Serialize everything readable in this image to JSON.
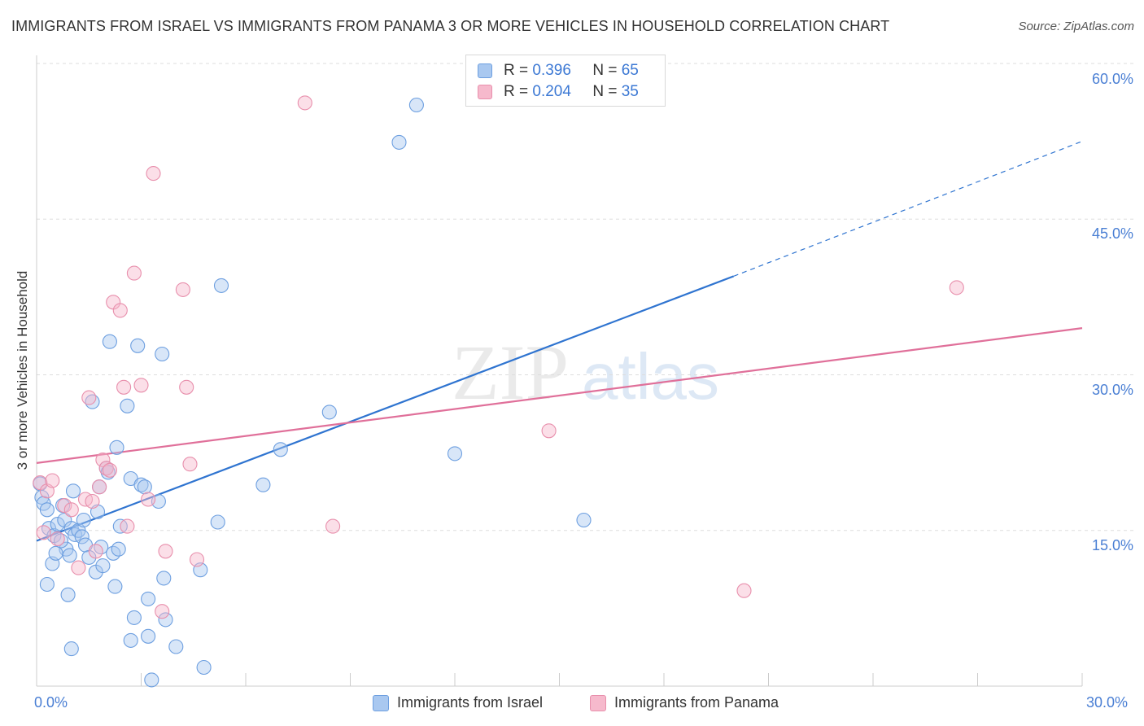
{
  "header": {
    "title": "IMMIGRANTS FROM ISRAEL VS IMMIGRANTS FROM PANAMA 3 OR MORE VEHICLES IN HOUSEHOLD CORRELATION CHART",
    "source": "Source: ZipAtlas.com"
  },
  "watermark": {
    "part1": "ZIP",
    "part2": "atlas"
  },
  "colors": {
    "israel_fill": "#a9c8f0",
    "israel_stroke": "#6d9fe0",
    "israel_line": "#2f74d0",
    "panama_fill": "#f6b9cc",
    "panama_stroke": "#e88fac",
    "panama_line": "#e0709a",
    "tick_text": "#4a7fd4"
  },
  "legend_top": {
    "rows": [
      {
        "r_label": "R =",
        "r_value": "0.396",
        "n_label": "N =",
        "n_value": "65"
      },
      {
        "r_label": "R =",
        "r_value": "0.204",
        "n_label": "N =",
        "n_value": "35"
      }
    ]
  },
  "chart_data": {
    "type": "scatter",
    "title": "IMMIGRANTS FROM ISRAEL VS IMMIGRANTS FROM PANAMA 3 OR MORE VEHICLES IN HOUSEHOLD CORRELATION CHART",
    "xlabel": "",
    "ylabel": "3 or more Vehicles in Household",
    "xlim": [
      0,
      30
    ],
    "ylim": [
      0,
      60
    ],
    "x_tick_labels": [
      "0.0%",
      "30.0%"
    ],
    "y_ticks": [
      15,
      30,
      45,
      60
    ],
    "y_tick_labels": [
      "15.0%",
      "30.0%",
      "45.0%",
      "60.0%"
    ],
    "grid": true,
    "legend": "bottom-center",
    "series": [
      {
        "name": "Immigrants from Israel",
        "r": 0.396,
        "n": 65,
        "trend": {
          "x0": 0,
          "y0": 14.0,
          "x1": 20.0,
          "y1": 39.5,
          "dashed_to_x": 30.0,
          "dashed_to_y": 52.5
        },
        "points": [
          [
            0.1,
            19.5
          ],
          [
            0.15,
            18.2
          ],
          [
            0.2,
            17.6
          ],
          [
            0.3,
            17.0
          ],
          [
            0.35,
            15.2
          ],
          [
            0.45,
            11.8
          ],
          [
            0.5,
            14.5
          ],
          [
            0.3,
            9.8
          ],
          [
            0.6,
            15.6
          ],
          [
            0.75,
            17.4
          ],
          [
            0.8,
            16.0
          ],
          [
            0.85,
            13.2
          ],
          [
            0.95,
            12.6
          ],
          [
            1.0,
            15.2
          ],
          [
            1.05,
            18.8
          ],
          [
            1.1,
            14.6
          ],
          [
            1.2,
            15.0
          ],
          [
            1.3,
            14.4
          ],
          [
            1.35,
            16.0
          ],
          [
            1.4,
            13.6
          ],
          [
            1.5,
            12.4
          ],
          [
            1.6,
            27.4
          ],
          [
            1.7,
            11.0
          ],
          [
            1.75,
            16.8
          ],
          [
            1.8,
            19.2
          ],
          [
            1.85,
            13.4
          ],
          [
            2.0,
            21.0
          ],
          [
            2.05,
            20.6
          ],
          [
            2.1,
            33.2
          ],
          [
            2.2,
            12.8
          ],
          [
            2.3,
            23.0
          ],
          [
            2.35,
            13.2
          ],
          [
            2.4,
            15.4
          ],
          [
            2.6,
            27.0
          ],
          [
            2.7,
            20.0
          ],
          [
            2.8,
            6.6
          ],
          [
            2.9,
            32.8
          ],
          [
            3.0,
            19.4
          ],
          [
            3.1,
            19.2
          ],
          [
            3.2,
            8.4
          ],
          [
            3.3,
            0.6
          ],
          [
            3.5,
            17.8
          ],
          [
            3.6,
            32.0
          ],
          [
            3.65,
            10.4
          ],
          [
            3.7,
            6.4
          ],
          [
            4.0,
            3.8
          ],
          [
            4.7,
            11.2
          ],
          [
            4.8,
            1.8
          ],
          [
            5.2,
            15.8
          ],
          [
            5.3,
            38.6
          ],
          [
            6.5,
            19.4
          ],
          [
            7.0,
            22.8
          ],
          [
            8.4,
            26.4
          ],
          [
            10.4,
            52.4
          ],
          [
            10.9,
            56.0
          ],
          [
            12.0,
            22.4
          ],
          [
            15.7,
            16.0
          ],
          [
            1.0,
            3.6
          ],
          [
            2.7,
            4.4
          ],
          [
            3.2,
            4.8
          ],
          [
            0.55,
            12.8
          ],
          [
            1.9,
            11.6
          ],
          [
            0.9,
            8.8
          ],
          [
            2.25,
            9.6
          ],
          [
            0.7,
            14.0
          ]
        ]
      },
      {
        "name": "Immigrants from Panama",
        "r": 0.204,
        "n": 35,
        "trend": {
          "x0": 0,
          "y0": 21.5,
          "x1": 30.0,
          "y1": 34.5
        },
        "points": [
          [
            0.1,
            19.6
          ],
          [
            0.2,
            14.8
          ],
          [
            0.3,
            18.8
          ],
          [
            0.45,
            19.8
          ],
          [
            0.6,
            14.2
          ],
          [
            0.8,
            17.4
          ],
          [
            1.0,
            17.0
          ],
          [
            1.2,
            11.4
          ],
          [
            1.4,
            18.0
          ],
          [
            1.5,
            27.8
          ],
          [
            1.6,
            17.8
          ],
          [
            1.7,
            13.0
          ],
          [
            1.8,
            19.2
          ],
          [
            1.9,
            21.8
          ],
          [
            2.0,
            21.0
          ],
          [
            2.1,
            20.8
          ],
          [
            2.2,
            37.0
          ],
          [
            2.4,
            36.2
          ],
          [
            2.5,
            28.8
          ],
          [
            2.6,
            15.4
          ],
          [
            2.8,
            39.8
          ],
          [
            3.0,
            29.0
          ],
          [
            3.2,
            18.0
          ],
          [
            3.35,
            49.4
          ],
          [
            3.6,
            7.2
          ],
          [
            3.7,
            13.0
          ],
          [
            4.2,
            38.2
          ],
          [
            4.3,
            28.8
          ],
          [
            4.4,
            21.4
          ],
          [
            4.6,
            12.2
          ],
          [
            7.7,
            56.2
          ],
          [
            8.5,
            15.4
          ],
          [
            14.7,
            24.6
          ],
          [
            20.3,
            9.2
          ],
          [
            26.4,
            38.4
          ]
        ]
      }
    ]
  }
}
